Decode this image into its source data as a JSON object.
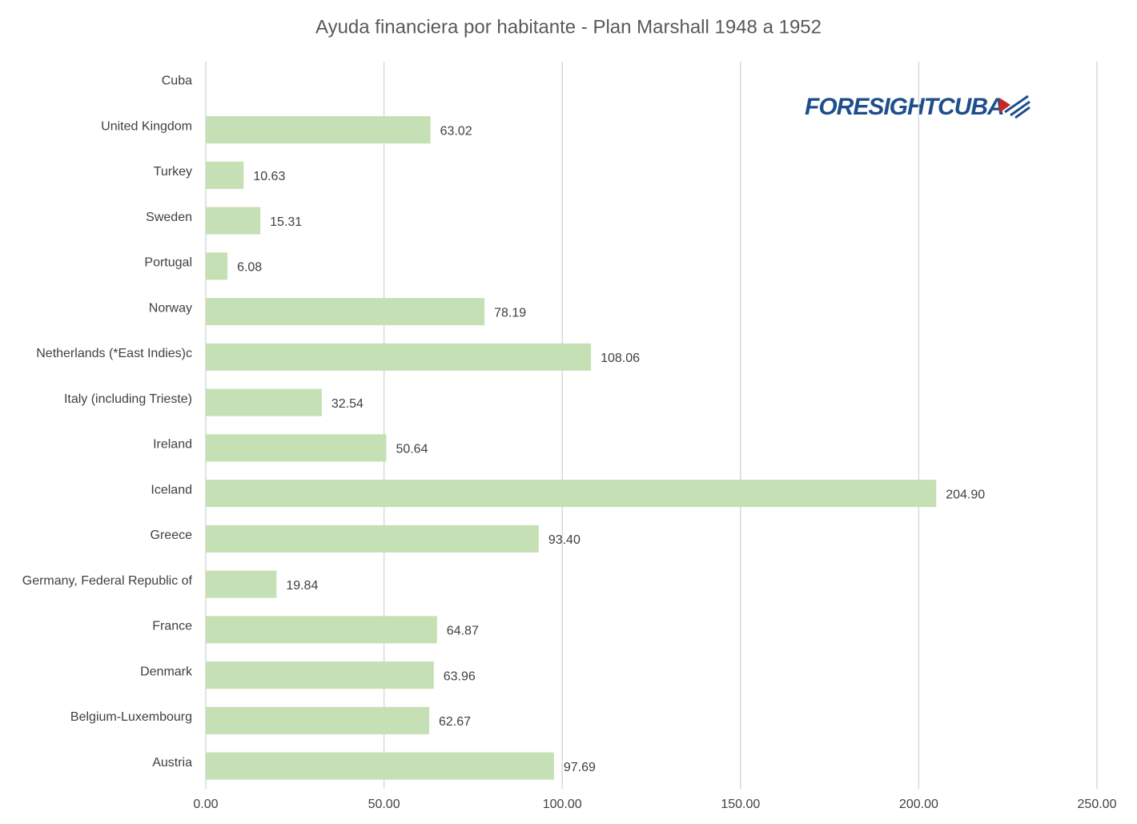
{
  "chart_data": {
    "type": "barh",
    "title": "Ayuda financiera por habitante - Plan Marshall 1948 a 1952",
    "logo": "FORESIGHTCUBA",
    "categories": [
      "Cuba",
      "United Kingdom",
      "Turkey",
      "Sweden",
      "Portugal",
      "Norway",
      "Netherlands (*East Indies)c",
      "Italy (including Trieste)",
      "Ireland",
      "Iceland",
      "Greece",
      "Germany, Federal Republic of",
      "France",
      "Denmark",
      "Belgium-Luxembourg",
      "Austria"
    ],
    "values": [
      null,
      63.02,
      10.63,
      15.31,
      6.08,
      78.19,
      108.06,
      32.54,
      50.64,
      204.9,
      93.4,
      19.84,
      64.87,
      63.96,
      62.67,
      97.69
    ],
    "value_labels": [
      null,
      "63.02",
      "10.63",
      "15.31",
      "6.08",
      "78.19",
      "108.06",
      "32.54",
      "50.64",
      "204.90",
      "93.40",
      "19.84",
      "64.87",
      "63.96",
      "62.67",
      "97.69"
    ],
    "color": "#c5e0b4",
    "xlim": [
      0,
      250
    ],
    "xticks": [
      {
        "value": 0,
        "label": "0.00"
      },
      {
        "value": 50,
        "label": "50.00"
      },
      {
        "value": 100,
        "label": "100.00"
      },
      {
        "value": 150,
        "label": "150.00"
      },
      {
        "value": 200,
        "label": "200.00"
      },
      {
        "value": 250,
        "label": "250.00"
      }
    ],
    "grid": true
  }
}
